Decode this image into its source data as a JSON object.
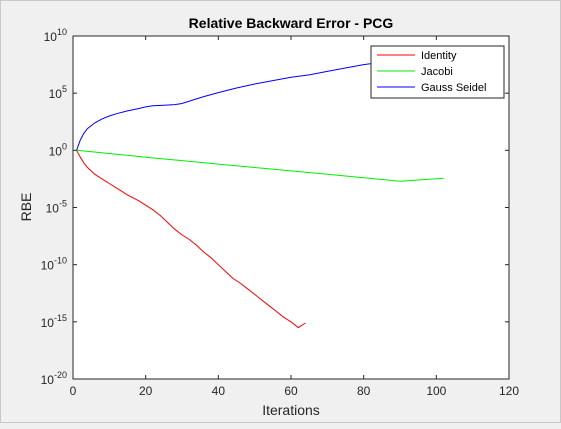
{
  "chart_data": {
    "type": "line",
    "title": "Relative Backward Error - PCG",
    "xlabel": "Iterations",
    "ylabel": "RBE",
    "xlim": [
      0,
      120
    ],
    "ylim_exponent": [
      -20,
      10
    ],
    "yscale": "log",
    "x_ticks": [
      "0",
      "20",
      "40",
      "60",
      "80",
      "100",
      "120"
    ],
    "y_tick_base": "10",
    "y_tick_exponents": [
      "-20",
      "-15",
      "-10",
      "-5",
      "0",
      "5",
      "10"
    ],
    "grid": false,
    "legend_position": "top-right",
    "series": [
      {
        "name": "Identity",
        "color": "#ff0000",
        "x": [
          1,
          2,
          3,
          4,
          5,
          6,
          8,
          10,
          12,
          15,
          18,
          20,
          22,
          24,
          26,
          28,
          30,
          32,
          34,
          36,
          38,
          40,
          42,
          44,
          46,
          48,
          50,
          52,
          54,
          56,
          58,
          60,
          62,
          64
        ],
        "log10_y": [
          0,
          -0.6,
          -1.1,
          -1.5,
          -1.8,
          -2.1,
          -2.5,
          -2.9,
          -3.3,
          -3.9,
          -4.4,
          -4.8,
          -5.2,
          -5.7,
          -6.3,
          -6.9,
          -7.4,
          -7.8,
          -8.3,
          -8.9,
          -9.4,
          -10.0,
          -10.6,
          -11.2,
          -11.6,
          -12.1,
          -12.6,
          -13.1,
          -13.6,
          -14.1,
          -14.6,
          -15.0,
          -15.5,
          -15.1
        ]
      },
      {
        "name": "Jacobi",
        "color": "#00ee00",
        "x": [
          1,
          10,
          20,
          30,
          40,
          50,
          60,
          70,
          80,
          90,
          102
        ],
        "log10_y": [
          0,
          -0.28,
          -0.6,
          -0.9,
          -1.2,
          -1.5,
          -1.8,
          -2.1,
          -2.4,
          -2.7,
          -2.45
        ]
      },
      {
        "name": "Gauss Seidel",
        "color": "#0000ff",
        "x": [
          1,
          2,
          3,
          4,
          6,
          8,
          10,
          12,
          15,
          18,
          20,
          22,
          25,
          28,
          30,
          33,
          36,
          40,
          45,
          50,
          55,
          60,
          65,
          70,
          75,
          80,
          85,
          88
        ],
        "log10_y": [
          0,
          0.9,
          1.5,
          1.9,
          2.4,
          2.75,
          3.0,
          3.2,
          3.45,
          3.65,
          3.8,
          3.9,
          3.95,
          4.0,
          4.1,
          4.4,
          4.7,
          5.05,
          5.45,
          5.8,
          6.1,
          6.4,
          6.6,
          6.9,
          7.2,
          7.5,
          7.7,
          7.85
        ]
      }
    ]
  }
}
